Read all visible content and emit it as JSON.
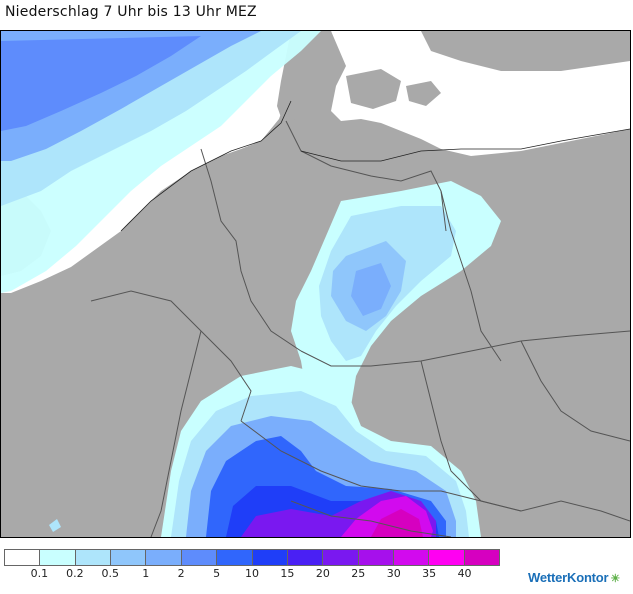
{
  "title": "Niederschlag 7 Uhr bis 13 Uhr MEZ",
  "legend": {
    "unit_note": "",
    "colors": [
      "#ffffff",
      "#c9ffff",
      "#aee5fb",
      "#8fc6fb",
      "#7aaefc",
      "#5e8cfc",
      "#3066fc",
      "#1f3ef8",
      "#4a20f4",
      "#7a18f0",
      "#a610ec",
      "#d20aee",
      "#ff00f2",
      "#d600c0"
    ],
    "labels": [
      "0.1",
      "0.2",
      "0.5",
      "1",
      "2",
      "5",
      "10",
      "15",
      "20",
      "25",
      "30",
      "35",
      "40"
    ]
  },
  "logo": {
    "text": "WetterKontor",
    "icon": "sun-cloud-icon"
  },
  "map": {
    "land_color": "#a9a9a9",
    "sea_color": "#ffffff",
    "border_color": "#555555"
  }
}
